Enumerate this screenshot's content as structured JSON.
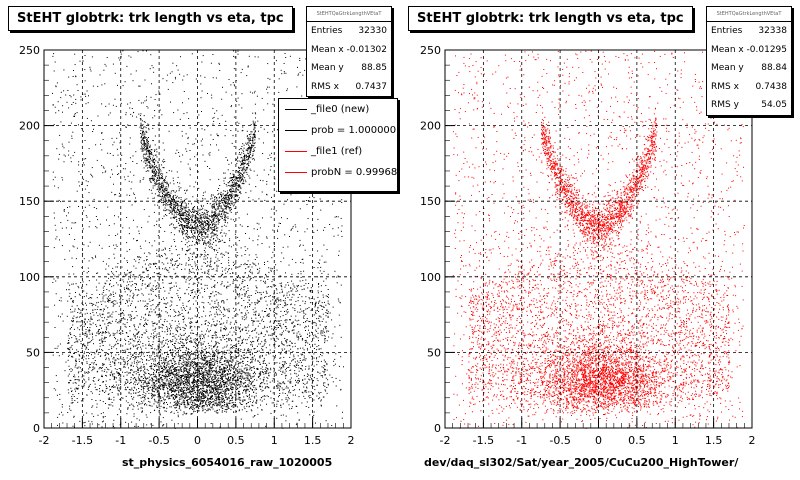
{
  "footer_text": "",
  "chart_data": [
    {
      "type": "scatter",
      "title": "StEHT globtrk: trk length vs eta, tpc",
      "xlabel": "st_physics_6054016_raw_1020005",
      "ylabel": "",
      "xlim": [
        -2,
        2
      ],
      "ylim": [
        0,
        250
      ],
      "x_ticks": [
        "-2",
        "-1.5",
        "-1",
        "-0.5",
        "0",
        "0.5",
        "1",
        "1.5",
        "2"
      ],
      "y_ticks": [
        "0",
        "50",
        "100",
        "150",
        "200",
        "250"
      ],
      "grid": true,
      "marker_color": "#000000",
      "seed": 12345,
      "stats": {
        "name": "StEHTQaGtrkLengthVEtaT",
        "rows": [
          {
            "label": "Entries",
            "value": "32330"
          },
          {
            "label": "Mean x",
            "value": "-0.01302"
          },
          {
            "label": "Mean y",
            "value": "88.85"
          },
          {
            "label": "RMS x",
            "value": "0.7437"
          }
        ]
      },
      "legend": [
        {
          "text": "_file0 (new)",
          "color": "#000000"
        },
        {
          "text": "prob = 1.000000",
          "color": "#000000"
        },
        {
          "text": "_file1 (ref)",
          "color": "#ff0000"
        },
        {
          "text": "probN = 0.999685",
          "color": "#ff0000"
        }
      ],
      "entries": 32330,
      "mean_x": -0.01302,
      "mean_y": 88.85,
      "rms_x": 0.7437
    },
    {
      "type": "scatter",
      "title": "StEHT globtrk: trk length vs eta, tpc",
      "xlabel": "dev/daq_sl302/Sat/year_2005/CuCu200_HighTower/",
      "ylabel": "",
      "xlim": [
        -2,
        2
      ],
      "ylim": [
        0,
        250
      ],
      "x_ticks": [
        "-2",
        "-1.5",
        "-1",
        "-0.5",
        "0",
        "0.5",
        "1",
        "1.5",
        "2"
      ],
      "y_ticks": [
        "0",
        "50",
        "100",
        "150",
        "200",
        "250"
      ],
      "grid": true,
      "marker_color": "#ff0000",
      "seed": 67890,
      "stats": {
        "name": "StEHTQaGtrkLengthVEtaT",
        "rows": [
          {
            "label": "Entries",
            "value": "32338"
          },
          {
            "label": "Mean x",
            "value": "-0.01295"
          },
          {
            "label": "Mean y",
            "value": "88.84"
          },
          {
            "label": "RMS x",
            "value": "0.7438"
          },
          {
            "label": "RMS y",
            "value": "54.05"
          }
        ]
      },
      "entries": 32338,
      "mean_x": -0.01295,
      "mean_y": 88.84,
      "rms_x": 0.7438,
      "rms_y": 54.05
    }
  ]
}
